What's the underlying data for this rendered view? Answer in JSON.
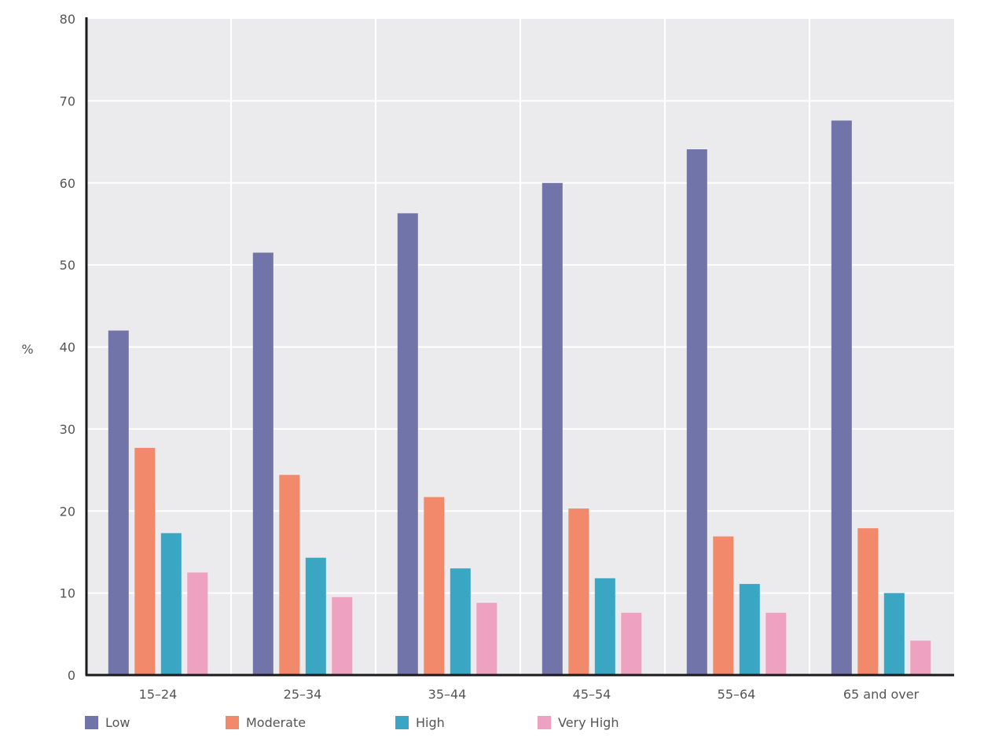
{
  "chart_data": {
    "type": "bar",
    "title": "",
    "xlabel": "",
    "ylabel": "%",
    "ylim": [
      0,
      80
    ],
    "yticks": [
      0,
      10,
      20,
      30,
      40,
      50,
      60,
      70,
      80
    ],
    "grid": true,
    "legend_position": "bottom-left",
    "categories": [
      "15–24",
      "25–34",
      "35–44",
      "45–54",
      "55–64",
      "65 and over"
    ],
    "series": [
      {
        "name": "Low",
        "color": "#7174a8",
        "values": [
          42.0,
          51.5,
          56.3,
          60.0,
          64.1,
          67.6
        ]
      },
      {
        "name": "Moderate",
        "color": "#f2896a",
        "values": [
          27.7,
          24.4,
          21.7,
          20.3,
          16.9,
          17.9
        ]
      },
      {
        "name": "High",
        "color": "#3ba6c4",
        "values": [
          17.3,
          14.3,
          13.0,
          11.8,
          11.1,
          10.0
        ]
      },
      {
        "name": "Very High",
        "color": "#eea1c1",
        "values": [
          12.5,
          9.5,
          8.8,
          7.6,
          7.6,
          4.2
        ]
      }
    ]
  },
  "colors": {
    "plot_background": "#ebebed",
    "gridline": "#ffffff",
    "axis": "#1a1a1a"
  }
}
